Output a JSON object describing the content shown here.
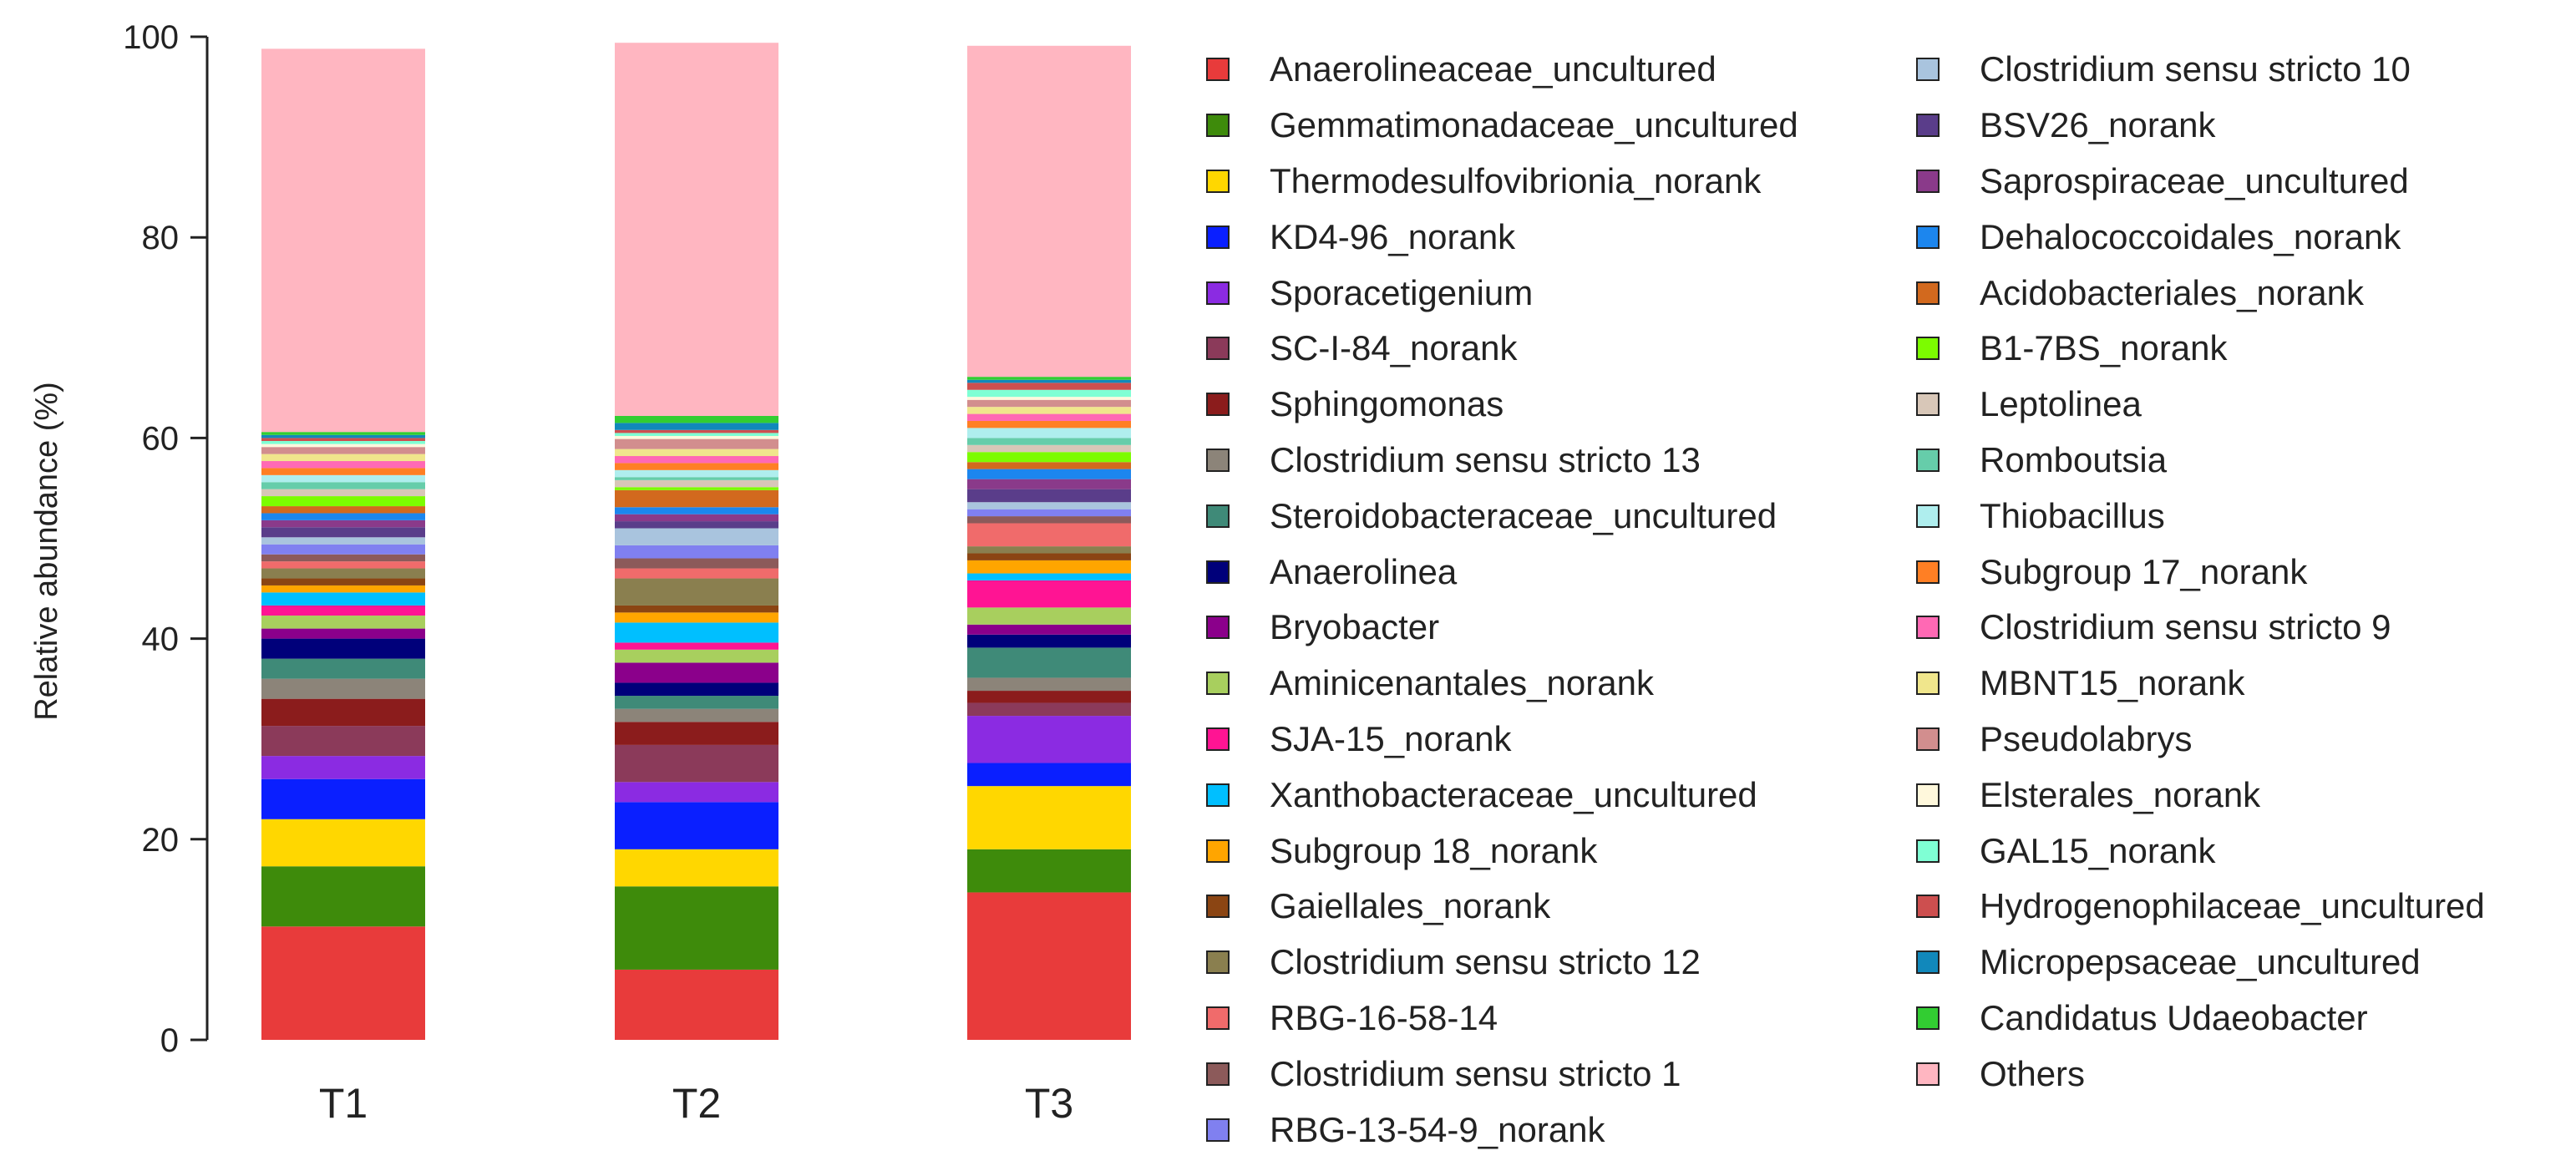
{
  "chart_data": {
    "type": "bar",
    "stacked": true,
    "ylabel": "Relative abundance (%)",
    "ylim": [
      0,
      100
    ],
    "yticks": [
      "0",
      "20",
      "40",
      "60",
      "80",
      "100"
    ],
    "categories": [
      "T1",
      "T2",
      "T3"
    ],
    "legend_position": "right",
    "series": [
      {
        "name": "Anaerolineaceae_uncultured",
        "color": "#e83b3b",
        "values": [
          11.3,
          7.0,
          14.7
        ]
      },
      {
        "name": "Gemmatimonadaceae_uncultured",
        "color": "#3e8b0b",
        "values": [
          6.0,
          8.3,
          4.3
        ]
      },
      {
        "name": "Thermodesulfovibrionia_norank",
        "color": "#ffd700",
        "values": [
          4.7,
          3.7,
          6.3
        ]
      },
      {
        "name": "KD4-96_norank",
        "color": "#0a1fff",
        "values": [
          4.0,
          4.7,
          2.3
        ]
      },
      {
        "name": "Sporacetigenium",
        "color": "#8b2be2",
        "values": [
          2.3,
          2.0,
          4.7
        ]
      },
      {
        "name": "SC-I-84_norank",
        "color": "#8b3a5a",
        "values": [
          3.0,
          3.7,
          1.3
        ]
      },
      {
        "name": "Sphingomonas",
        "color": "#8b1c1c",
        "values": [
          2.7,
          2.3,
          1.2
        ]
      },
      {
        "name": "Clostridium sensu stricto 13",
        "color": "#8c8479",
        "values": [
          2.0,
          1.3,
          1.3
        ]
      },
      {
        "name": "Steroidobacteraceae_uncultured",
        "color": "#3f8a78",
        "values": [
          2.0,
          1.3,
          3.0
        ]
      },
      {
        "name": "Anaerolinea",
        "color": "#00007a",
        "values": [
          2.0,
          1.3,
          1.3
        ]
      },
      {
        "name": "Bryobacter",
        "color": "#8b008b",
        "values": [
          1.0,
          2.0,
          1.0
        ]
      },
      {
        "name": "Aminicenantales_norank",
        "color": "#a8cf5e",
        "values": [
          1.3,
          1.3,
          1.7
        ]
      },
      {
        "name": "SJA-15_norank",
        "color": "#ff1493",
        "values": [
          1.0,
          0.7,
          2.7
        ]
      },
      {
        "name": "Xanthobacteraceae_uncultured",
        "color": "#00bfff",
        "values": [
          1.3,
          2.0,
          0.7
        ]
      },
      {
        "name": "Subgroup 18_norank",
        "color": "#ffa500",
        "values": [
          0.7,
          1.0,
          1.3
        ]
      },
      {
        "name": "Gaiellales_norank",
        "color": "#8b4513",
        "values": [
          0.7,
          0.7,
          0.7
        ]
      },
      {
        "name": "Clostridium sensu stricto 12",
        "color": "#8a7f4f",
        "values": [
          1.0,
          2.7,
          0.7
        ]
      },
      {
        "name": "RBG-16-58-14",
        "color": "#f06b6b",
        "values": [
          0.7,
          1.0,
          2.3
        ]
      },
      {
        "name": "Clostridium sensu stricto 1",
        "color": "#8c5a5a",
        "values": [
          0.7,
          1.0,
          0.7
        ]
      },
      {
        "name": "RBG-13-54-9_norank",
        "color": "#8080f0",
        "values": [
          1.0,
          1.3,
          0.7
        ]
      },
      {
        "name": "Clostridium sensu stricto 10",
        "color": "#a9c4de",
        "values": [
          0.7,
          1.7,
          0.7
        ]
      },
      {
        "name": "BSV26_norank",
        "color": "#5a3d8a",
        "values": [
          1.0,
          0.7,
          1.3
        ]
      },
      {
        "name": "Saprospiraceae_uncultured",
        "color": "#8a3a8a",
        "values": [
          0.7,
          0.7,
          1.0
        ]
      },
      {
        "name": "Dehalococcoidales_norank",
        "color": "#1c86ee",
        "values": [
          0.7,
          0.7,
          1.0
        ]
      },
      {
        "name": "Acidobacteriales_norank",
        "color": "#d2691e",
        "values": [
          0.7,
          1.7,
          0.7
        ]
      },
      {
        "name": "B1-7BS_norank",
        "color": "#7cfc00",
        "values": [
          1.0,
          0.3,
          1.0
        ]
      },
      {
        "name": "Leptolinea",
        "color": "#d8c7b8",
        "values": [
          0.7,
          0.7,
          0.7
        ]
      },
      {
        "name": "Romboutsia",
        "color": "#66cdaa",
        "values": [
          0.7,
          0.3,
          0.7
        ]
      },
      {
        "name": "Thiobacillus",
        "color": "#afeeee",
        "values": [
          0.7,
          0.7,
          1.0
        ]
      },
      {
        "name": "Subgroup 17_norank",
        "color": "#ff7f24",
        "values": [
          0.7,
          0.7,
          0.7
        ]
      },
      {
        "name": "Clostridium sensu stricto 9",
        "color": "#ff69b4",
        "values": [
          0.7,
          0.7,
          0.7
        ]
      },
      {
        "name": "MBNT15_norank",
        "color": "#f0e68c",
        "values": [
          0.7,
          0.7,
          0.7
        ]
      },
      {
        "name": "Pseudolabrys",
        "color": "#d28e8e",
        "values": [
          0.7,
          1.0,
          0.7
        ]
      },
      {
        "name": "Elsterales_norank",
        "color": "#fff8dc",
        "values": [
          0.3,
          0.3,
          0.3
        ]
      },
      {
        "name": "GAL15_norank",
        "color": "#7fffd4",
        "values": [
          0.3,
          0.3,
          0.7
        ]
      },
      {
        "name": "Hydrogenophilaceae_uncultured",
        "color": "#cd4f4f",
        "values": [
          0.3,
          0.3,
          0.7
        ]
      },
      {
        "name": "Micropepsaceae_uncultured",
        "color": "#1188bb",
        "values": [
          0.3,
          0.7,
          0.3
        ]
      },
      {
        "name": "Candidatus Udaeobacter",
        "color": "#32cd32",
        "values": [
          0.3,
          0.7,
          0.3
        ]
      },
      {
        "name": "Others",
        "color": "#ffb6c1",
        "values": [
          38.2,
          37.2,
          33.0
        ]
      }
    ]
  }
}
